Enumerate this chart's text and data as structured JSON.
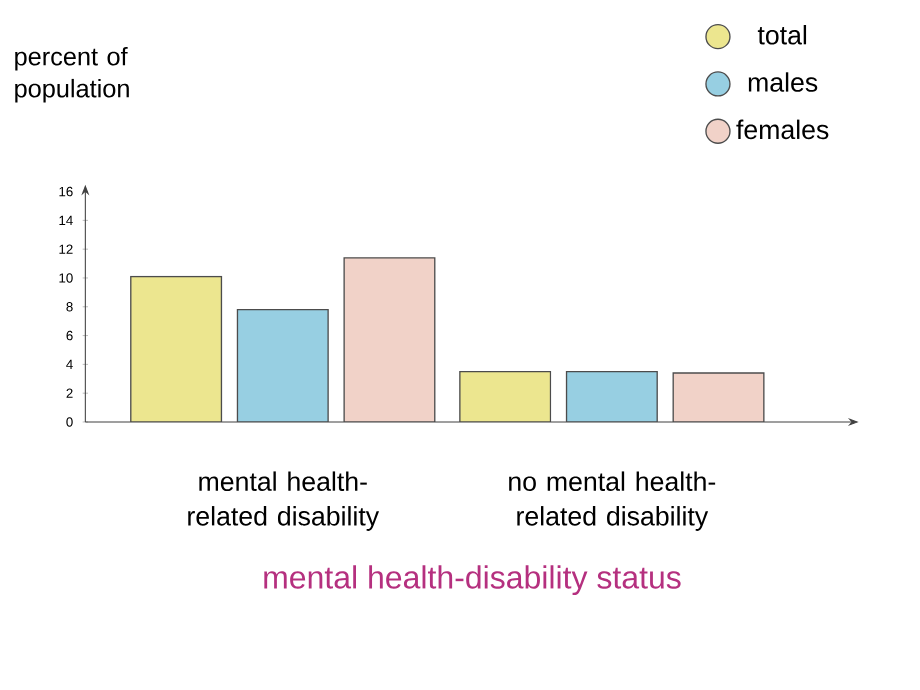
{
  "chart_data": {
    "type": "bar",
    "ylabel": "percent of population",
    "xlabel": "mental health-disability status",
    "categories": [
      "mental health-related disability",
      "no mental health-related disability"
    ],
    "ylim": [
      0,
      16
    ],
    "yticks": [
      0,
      2,
      4,
      6,
      8,
      10,
      12,
      14,
      16
    ],
    "legend": "top right",
    "series": [
      {
        "name": "total",
        "color": "#ece68f",
        "values": [
          10.1,
          3.5
        ]
      },
      {
        "name": "males",
        "color": "#97cfe2",
        "values": [
          7.8,
          3.5
        ]
      },
      {
        "name": "females",
        "color": "#f1d2c8",
        "values": [
          11.4,
          3.4
        ]
      }
    ]
  }
}
